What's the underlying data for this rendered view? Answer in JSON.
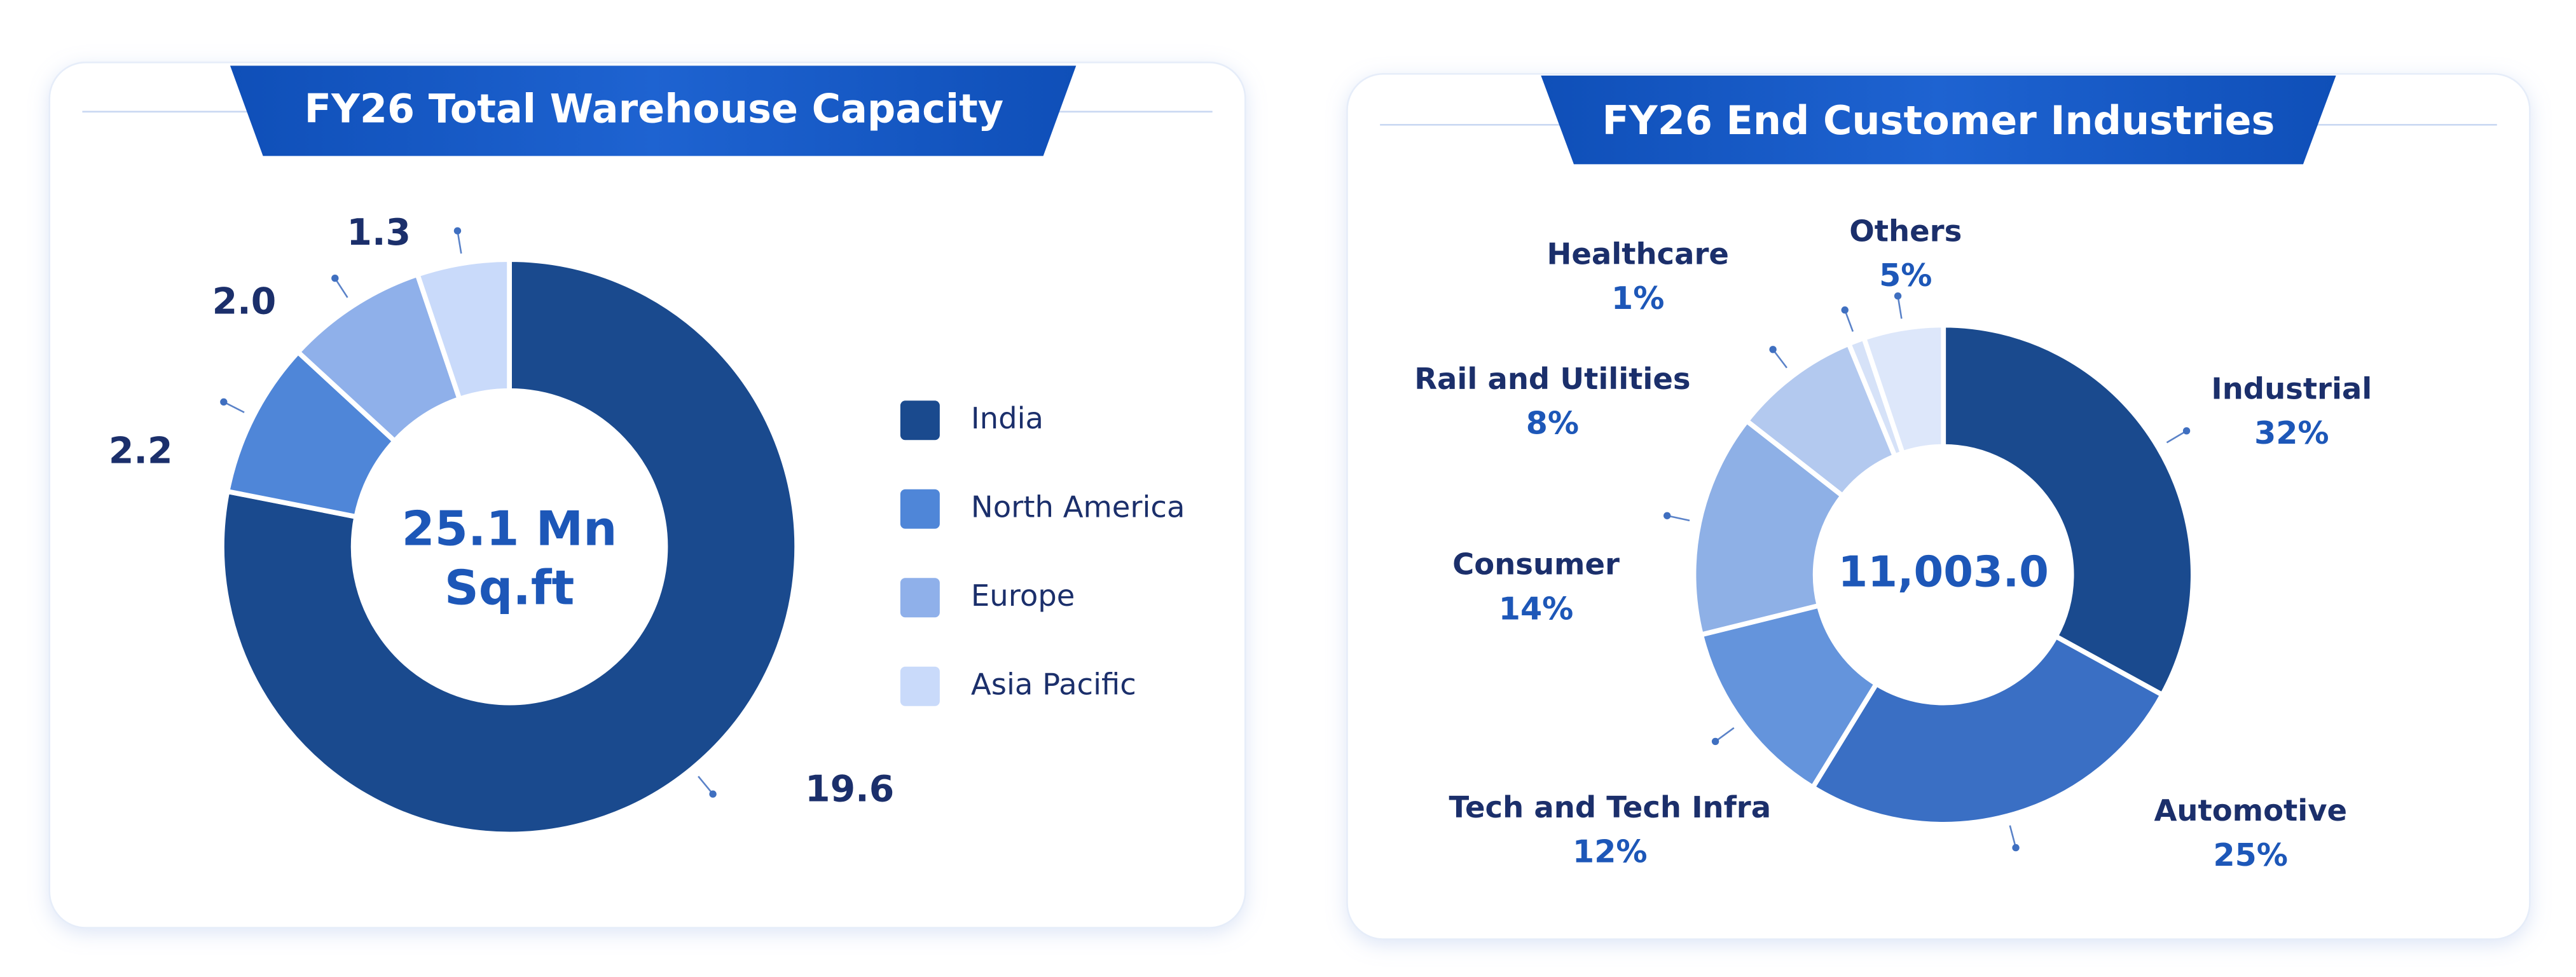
{
  "chart_data": [
    {
      "type": "donut",
      "title": "FY26 Total Warehouse Capacity",
      "center_label": [
        "25.1 Mn",
        "Sq.ft"
      ],
      "categories": [
        "India",
        "North America",
        "Europe",
        "Asia Pacific"
      ],
      "values": [
        19.6,
        2.2,
        2.0,
        1.3
      ],
      "value_labels": [
        "19.6",
        "2.2",
        "2.0",
        "1.3"
      ],
      "colors": [
        "#1a4a8e",
        "#4f86d8",
        "#8fb0ea",
        "#c9dafa"
      ],
      "legend": "right"
    },
    {
      "type": "donut",
      "title": "FY26 End Customer Industries",
      "center_label": [
        "11,003.0"
      ],
      "categories": [
        "Industrial",
        "Automotive",
        "Tech and Tech Infra",
        "Consumer",
        "Rail and Utilities",
        "Healthcare",
        "Others"
      ],
      "values": [
        32,
        25,
        12,
        14,
        8,
        1,
        5
      ],
      "value_labels": [
        "32%",
        "25%",
        "12%",
        "14%",
        "8%",
        "1%",
        "5%"
      ],
      "colors": [
        "#1a4a8e",
        "#3a6fc4",
        "#6494dc",
        "#8eb0e6",
        "#b3c9ef",
        "#d6e2f8",
        "#dde7fa"
      ]
    }
  ]
}
